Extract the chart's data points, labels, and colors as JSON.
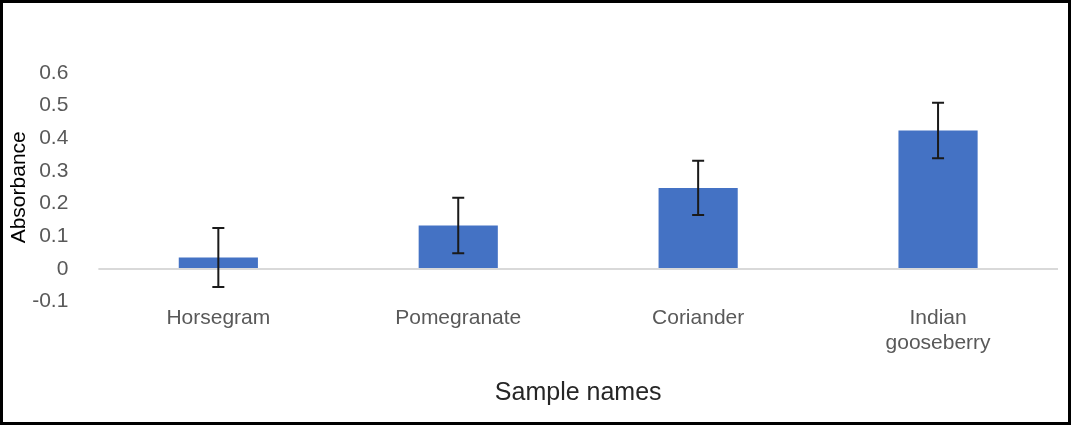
{
  "chart_data": {
    "type": "bar",
    "xlabel": "Sample names",
    "ylabel": "Absorbance",
    "categories": [
      "Horsegram",
      "Pomegranate",
      "Coriander",
      "Indian gooseberry"
    ],
    "values": [
      0.035,
      0.133,
      0.248,
      0.424
    ],
    "errors": [
      0.09,
      0.085,
      0.083,
      0.085
    ],
    "color": "#4472c4",
    "ylim": [
      -0.1,
      0.6
    ],
    "yticks": [
      -0.1,
      0,
      0.1,
      0.2,
      0.3,
      0.4,
      0.5,
      0.6
    ],
    "grid": false,
    "legend": false
  }
}
